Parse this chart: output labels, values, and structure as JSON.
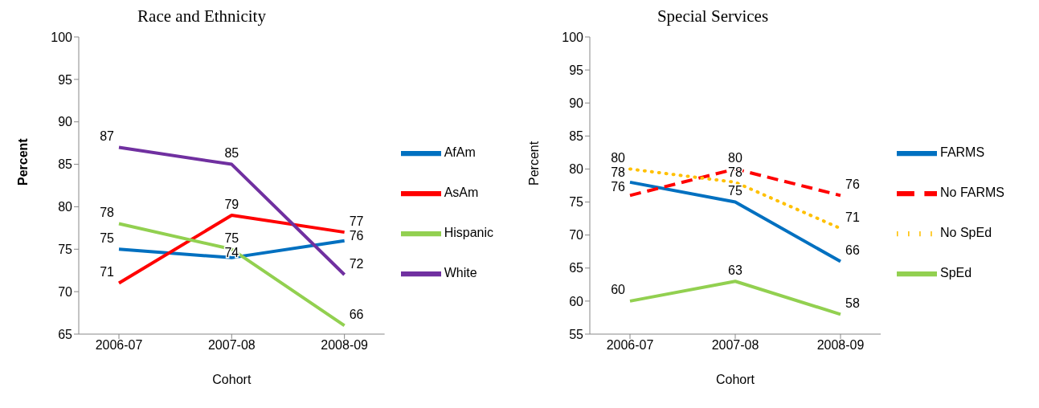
{
  "chart_data": [
    {
      "type": "line",
      "title": "Race and Ethnicity",
      "xlabel": "Cohort",
      "ylabel": "Percent",
      "categories": [
        "2006-07",
        "2007-08",
        "2008-09"
      ],
      "ylim": [
        65,
        100
      ],
      "yticks": [
        65,
        70,
        75,
        80,
        85,
        90,
        95,
        100
      ],
      "grid": false,
      "legend": "right",
      "marker": "none",
      "data_labels": true,
      "series": [
        {
          "name": "AfAm",
          "color": "#0070c0",
          "values": [
            75,
            74,
            76
          ]
        },
        {
          "name": "AsAm",
          "color": "#ff0000",
          "values": [
            71,
            79,
            77
          ]
        },
        {
          "name": "Hispanic",
          "color": "#92d050",
          "values": [
            78,
            75,
            66
          ]
        },
        {
          "name": "White",
          "color": "#7030a0",
          "values": [
            87,
            85,
            72
          ]
        }
      ]
    },
    {
      "type": "line",
      "title": "Special Services",
      "xlabel": "Cohort",
      "ylabel": "Percent",
      "categories": [
        "2006-07",
        "2007-08",
        "2008-09"
      ],
      "ylim": [
        55,
        100
      ],
      "yticks": [
        55,
        60,
        65,
        70,
        75,
        80,
        85,
        90,
        95,
        100
      ],
      "grid": false,
      "legend": "right",
      "marker": "none",
      "data_labels": true,
      "series": [
        {
          "name": "FARMS",
          "color": "#0070c0",
          "line_style": "solid",
          "values": [
            78,
            75,
            66
          ]
        },
        {
          "name": "No FARMS",
          "color": "#ff0000",
          "line_style": "dashed",
          "values": [
            76,
            80,
            76
          ]
        },
        {
          "name": "SpEd",
          "color": "#92d050",
          "line_style": "solid",
          "values": [
            60,
            63,
            58
          ]
        },
        {
          "name": "No SpEd",
          "color": "#ffc000",
          "line_style": "dotted",
          "values": [
            80,
            78,
            71
          ]
        }
      ]
    }
  ]
}
